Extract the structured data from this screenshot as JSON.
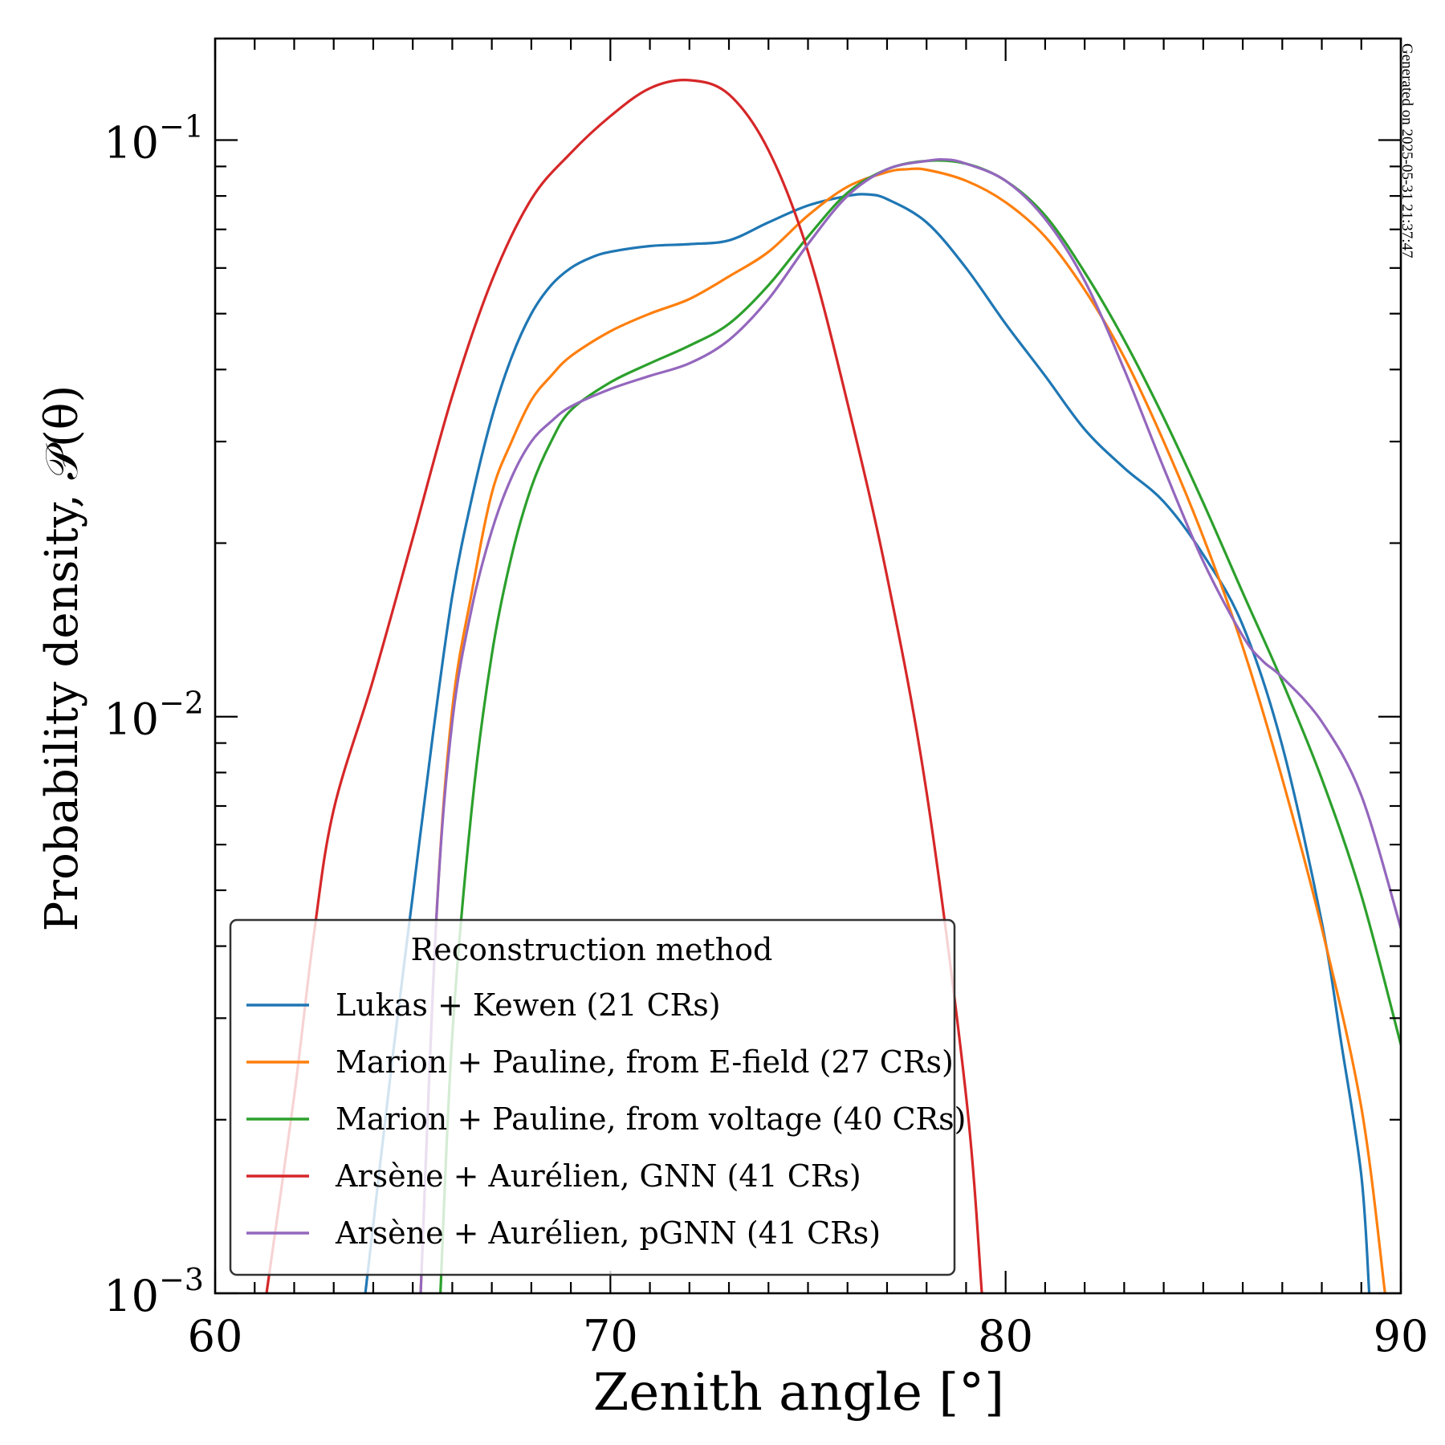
{
  "chart_data": {
    "type": "line",
    "title": "",
    "xlabel": "Zenith angle [°]",
    "ylabel": "Probability density, 𝒫(θ)",
    "xlim": [
      60,
      90
    ],
    "ylim": [
      0.001,
      0.15
    ],
    "yscale": "log",
    "grid": false,
    "x_ticks": [
      {
        "value": 60,
        "label": "60"
      },
      {
        "value": 70,
        "label": "70"
      },
      {
        "value": 80,
        "label": "80"
      },
      {
        "value": 90,
        "label": "90"
      }
    ],
    "y_ticks": [
      {
        "value": 0.1,
        "base": "10",
        "exp": "−1"
      },
      {
        "value": 0.01,
        "base": "10",
        "exp": "−2"
      },
      {
        "value": 0.001,
        "base": "10",
        "exp": "−3"
      }
    ],
    "legend": {
      "title": "Reconstruction method",
      "position": "lower-left"
    },
    "annotation": "Generated on 2025-05-31 21:37:47",
    "series": [
      {
        "name": "Lukas + Kewen (21 CRs)",
        "color": "#1f77b4",
        "x": [
          63.8,
          64.5,
          65,
          65.5,
          66,
          66.5,
          67,
          67.5,
          68,
          68.5,
          69,
          69.5,
          70,
          71,
          72,
          73,
          74,
          75,
          76,
          76.5,
          77,
          78,
          79,
          80,
          81,
          82,
          83,
          84,
          85,
          86,
          87,
          88,
          88.5,
          89,
          89.2
        ],
        "y": [
          0.001,
          0.0026,
          0.0049,
          0.0092,
          0.0162,
          0.024,
          0.033,
          0.042,
          0.05,
          0.056,
          0.06,
          0.0625,
          0.064,
          0.0655,
          0.066,
          0.067,
          0.072,
          0.077,
          0.08,
          0.0805,
          0.079,
          0.072,
          0.06,
          0.048,
          0.039,
          0.0315,
          0.027,
          0.0236,
          0.0191,
          0.0144,
          0.0089,
          0.0044,
          0.0027,
          0.0016,
          0.001
        ]
      },
      {
        "name": "Marion + Pauline, from E-field (27 CRs)",
        "color": "#ff7f0e",
        "x": [
          65.2,
          65.6,
          66,
          66.5,
          67,
          67.5,
          68,
          68.5,
          69,
          70,
          71,
          72,
          73,
          74,
          75,
          76,
          77,
          77.5,
          78,
          79,
          80,
          81,
          82,
          83,
          84,
          85,
          86,
          87,
          88,
          89,
          89.6
        ],
        "y": [
          0.001,
          0.0045,
          0.0103,
          0.0165,
          0.0244,
          0.03,
          0.0354,
          0.039,
          0.0422,
          0.0466,
          0.05,
          0.053,
          0.058,
          0.064,
          0.074,
          0.083,
          0.088,
          0.089,
          0.0888,
          0.085,
          0.078,
          0.068,
          0.055,
          0.042,
          0.03,
          0.0205,
          0.0132,
          0.0078,
          0.0043,
          0.0021,
          0.001
        ]
      },
      {
        "name": "Marion + Pauline, from voltage (40 CRs)",
        "color": "#2ca02c",
        "x": [
          65.7,
          66,
          66.5,
          67,
          67.5,
          68,
          68.5,
          69,
          70,
          71,
          72,
          73,
          74,
          75,
          76,
          77,
          78,
          79,
          80,
          81,
          82,
          83,
          84,
          85,
          86,
          87,
          88,
          89,
          90
        ],
        "y": [
          0.001,
          0.0028,
          0.007,
          0.0128,
          0.019,
          0.025,
          0.03,
          0.034,
          0.038,
          0.041,
          0.044,
          0.048,
          0.056,
          0.068,
          0.081,
          0.089,
          0.092,
          0.091,
          0.085,
          0.074,
          0.059,
          0.045,
          0.033,
          0.0235,
          0.0164,
          0.0115,
          0.0078,
          0.0049,
          0.0027
        ]
      },
      {
        "name": "Arsène + Aurélien, GNN (41 CRs)",
        "color": "#d62728",
        "x": [
          61.3,
          62,
          62.5,
          63,
          64,
          65,
          66,
          67,
          68,
          69,
          70,
          71,
          72,
          73,
          74,
          75,
          76,
          77,
          78,
          79,
          79.4
        ],
        "y": [
          0.001,
          0.0022,
          0.0042,
          0.0069,
          0.0116,
          0.0204,
          0.036,
          0.057,
          0.079,
          0.095,
          0.11,
          0.123,
          0.127,
          0.12,
          0.096,
          0.064,
          0.035,
          0.0175,
          0.0074,
          0.0022,
          0.001
        ]
      },
      {
        "name": "Arsène + Aurélien, pGNN (41 CRs)",
        "color": "#9467bd",
        "x": [
          65.2,
          65.6,
          66,
          66.5,
          67,
          67.5,
          68,
          68.5,
          69,
          70,
          71,
          72,
          73,
          74,
          75,
          76,
          77,
          78,
          78.5,
          79,
          80,
          81,
          82,
          83,
          84,
          85,
          86,
          86.5,
          87,
          88,
          89,
          90
        ],
        "y": [
          0.001,
          0.0045,
          0.0098,
          0.0155,
          0.021,
          0.026,
          0.03,
          0.0325,
          0.0345,
          0.037,
          0.039,
          0.041,
          0.045,
          0.053,
          0.066,
          0.08,
          0.089,
          0.092,
          0.0925,
          0.091,
          0.085,
          0.073,
          0.057,
          0.04,
          0.027,
          0.0186,
          0.0138,
          0.0125,
          0.0117,
          0.0098,
          0.0073,
          0.0043
        ]
      }
    ]
  }
}
